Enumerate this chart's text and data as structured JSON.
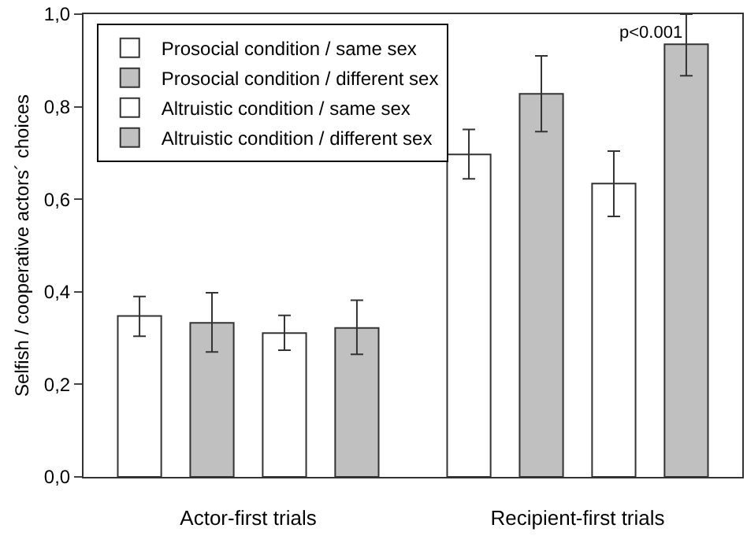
{
  "chart_data": {
    "type": "bar",
    "ylabel": "Selfish / cooperative actors´ choices",
    "categories": [
      "Actor-first trials",
      "Recipient-first trials"
    ],
    "series": [
      {
        "name": "Prosocial condition / same sex",
        "color": "#ffffff",
        "values": [
          0.348,
          0.697
        ],
        "errors": [
          [
            0.304,
            0.39
          ],
          [
            0.644,
            0.751
          ]
        ]
      },
      {
        "name": "Prosocial condition / different sex",
        "color": "#c0c0c0",
        "values": [
          0.333,
          0.828
        ],
        "errors": [
          [
            0.27,
            0.398
          ],
          [
            0.746,
            0.91
          ]
        ]
      },
      {
        "name": "Altruistic condition / same sex",
        "color": "#ffffff",
        "values": [
          0.311,
          0.634
        ],
        "errors": [
          [
            0.274,
            0.349
          ],
          [
            0.563,
            0.704
          ]
        ]
      },
      {
        "name": "Altruistic condition / different sex",
        "color": "#c0c0c0",
        "values": [
          0.322,
          0.935
        ],
        "errors": [
          [
            0.265,
            0.382
          ],
          [
            0.867,
            1.0
          ]
        ]
      }
    ],
    "ylim": [
      0,
      1
    ],
    "yticks": [
      {
        "value": 0,
        "label": "0,0"
      },
      {
        "value": 0.2,
        "label": "0,2"
      },
      {
        "value": 0.4,
        "label": "0,4"
      },
      {
        "value": 0.6,
        "label": "0,6"
      },
      {
        "value": 0.8,
        "label": "0,8"
      },
      {
        "value": 1,
        "label": "1,0"
      }
    ],
    "annotations": [
      "p<0.001"
    ],
    "grid": false,
    "legend": "top left"
  }
}
